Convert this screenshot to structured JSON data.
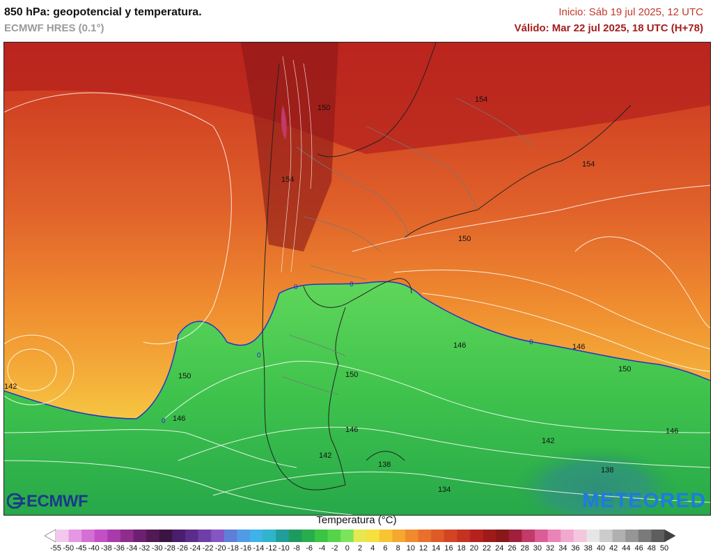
{
  "header": {
    "title": "850 hPa: geopotencial y temperatura.",
    "model": "ECMWF HRES (0.1°)",
    "init": "Inicio: Sáb 19 jul 2025, 12 UTC",
    "valid": "Válido: Mar 22 jul 2025, 18 UTC (H+78)"
  },
  "logos": {
    "left": "ECMWF",
    "right": "METEORED"
  },
  "map": {
    "contour_labels": [
      "150",
      "154",
      "154",
      "154",
      "150",
      "146",
      "146",
      "150",
      "150",
      "142",
      "150",
      "146",
      "146",
      "142",
      "142",
      "146",
      "138",
      "138",
      "134"
    ],
    "zero_labels": [
      "0",
      "0",
      "0",
      "0",
      "0"
    ]
  },
  "legend": {
    "title": "Temperatura (°C)",
    "labels": [
      "-55",
      "-50",
      "-45",
      "-40",
      "-38",
      "-36",
      "-34",
      "-32",
      "-30",
      "-28",
      "-26",
      "-24",
      "-22",
      "-20",
      "-18",
      "-16",
      "-14",
      "-12",
      "-10",
      "-8",
      "-6",
      "-4",
      "-2",
      "0",
      "2",
      "4",
      "6",
      "8",
      "10",
      "12",
      "14",
      "16",
      "18",
      "20",
      "22",
      "24",
      "26",
      "28",
      "30",
      "32",
      "34",
      "36",
      "38",
      "40",
      "42",
      "44",
      "46",
      "48",
      "50"
    ],
    "colors": [
      "#ffffff",
      "#f2c8ef",
      "#e597e3",
      "#d46fd4",
      "#c250c4",
      "#a83aa9",
      "#8e2d8c",
      "#6e2070",
      "#521a55",
      "#3b1542",
      "#4a1d6e",
      "#5a2d8a",
      "#6f3fa8",
      "#8655c4",
      "#5f7ed8",
      "#4f9be6",
      "#3fb2e8",
      "#2fb4c9",
      "#219d9a",
      "#1e9a5e",
      "#27ad4b",
      "#39c443",
      "#55d44a",
      "#7be45a",
      "#e6e84f",
      "#f5e03d",
      "#f7c533",
      "#f5a72f",
      "#f08a2c",
      "#e8702a",
      "#de5a26",
      "#d24423",
      "#c63221",
      "#b5221e",
      "#9e1b1b",
      "#8a1818",
      "#a01f3c",
      "#c23a68",
      "#dc5c95",
      "#ea84b6",
      "#f2a9cf",
      "#f5c7df",
      "#e6e6e6",
      "#cccccc",
      "#b0b0b0",
      "#969696",
      "#7a7a7a",
      "#5e5e5e",
      "#404040"
    ]
  }
}
